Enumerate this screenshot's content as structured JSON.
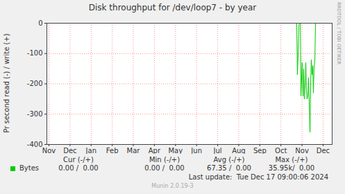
{
  "chart_data": {
    "type": "line",
    "title": "Disk throughput for /dev/loop7 - by year",
    "y_label": "Pr second read (-) / write (+)",
    "xlim": [
      -0.1,
      13.43
    ],
    "xticks": [
      {
        "value": 0,
        "label": "Nov"
      },
      {
        "value": 1,
        "label": "Dec"
      },
      {
        "value": 2,
        "label": "Jan"
      },
      {
        "value": 3,
        "label": "Feb"
      },
      {
        "value": 4,
        "label": "Mar"
      },
      {
        "value": 5,
        "label": "Apr"
      },
      {
        "value": 6,
        "label": "May"
      },
      {
        "value": 7,
        "label": "Jun"
      },
      {
        "value": 8,
        "label": "Jul"
      },
      {
        "value": 9,
        "label": "Aug"
      },
      {
        "value": 10,
        "label": "Sep"
      },
      {
        "value": 11,
        "label": "Oct"
      },
      {
        "value": 12,
        "label": "Nov"
      },
      {
        "value": 13,
        "label": "Dec"
      }
    ],
    "ylim": [
      -400,
      0
    ],
    "yticks": [
      0,
      -100,
      -200,
      -300,
      -400
    ],
    "grid": true,
    "x": [
      0,
      11.75,
      11.78,
      11.82,
      11.85,
      11.92,
      11.95,
      12.01,
      12.05,
      12.08,
      12.11,
      12.15,
      12.18,
      12.21,
      12.24,
      12.28,
      12.31,
      12.38,
      12.41,
      12.44,
      12.48,
      12.51,
      12.54,
      12.57,
      12.61,
      12.64,
      12.7
    ],
    "series": [
      {
        "name": "Bytes",
        "color": "#00cc00",
        "values": [
          0,
          0,
          -170,
          -100,
          -5,
          0,
          -240,
          -130,
          -240,
          -150,
          -250,
          -200,
          -130,
          -220,
          -250,
          -240,
          -180,
          -360,
          -200,
          -120,
          -170,
          -140,
          -230,
          -150,
          -120,
          0,
          0
        ],
        "stats": [
          "0.00 /  0.00",
          "0.00 /  0.00",
          "67.35 /  0.00",
          "35.95k/  0.00"
        ]
      }
    ],
    "stats_columns": [
      "Cur (-/+)",
      "Min (-/+)",
      "Avg (-/+)",
      "Max (-/+)"
    ],
    "footer": "Last update:  Tue Dec 17 09:00:06 2024",
    "credit": "Munin 2.0.19-3",
    "watermark": "RRDTOOL / TOBI OETIKER"
  }
}
